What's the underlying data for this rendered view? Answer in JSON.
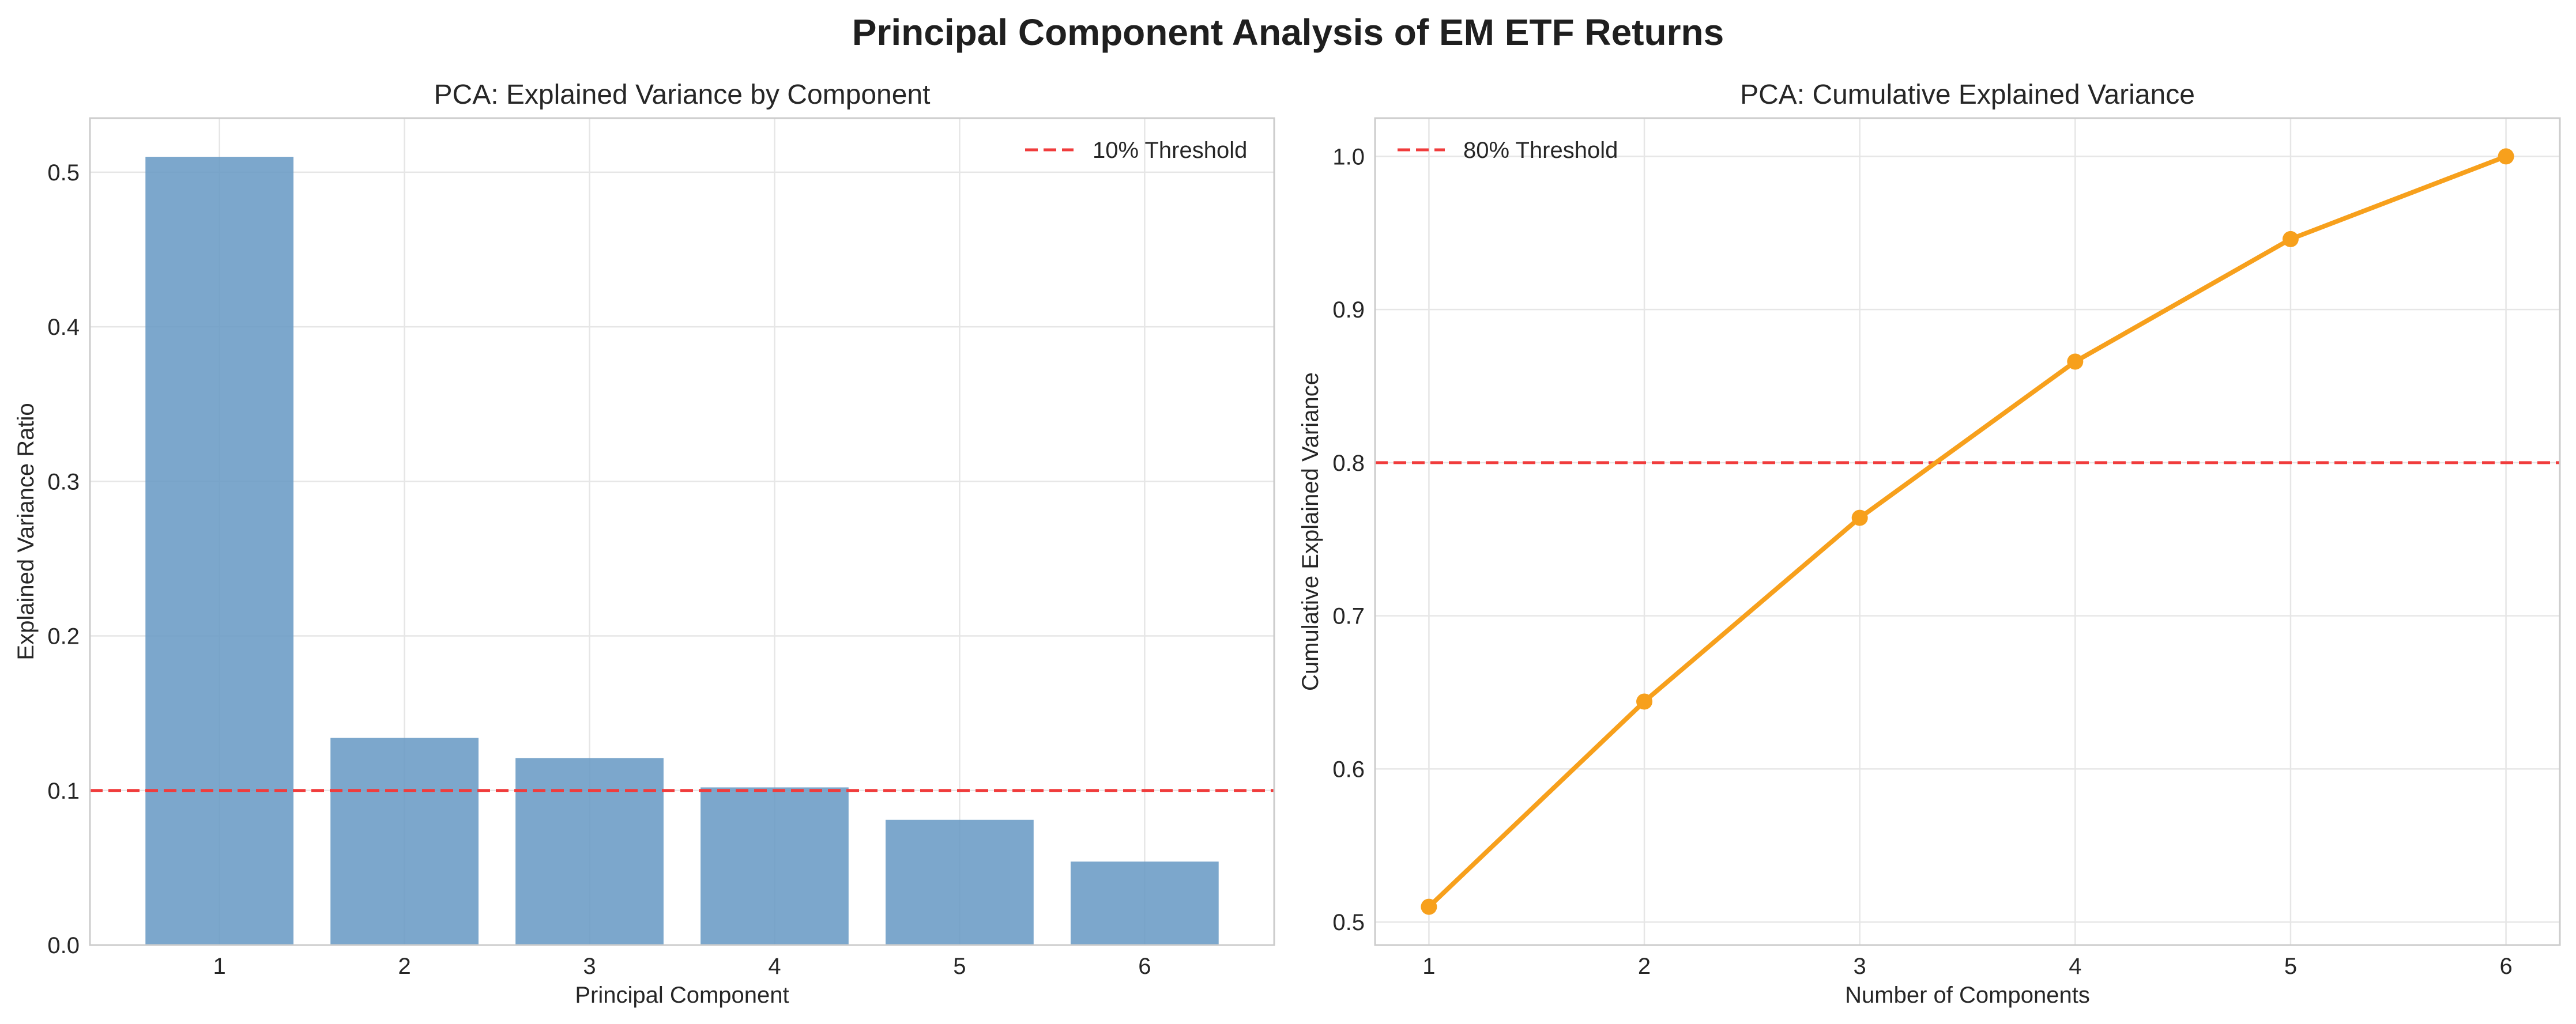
{
  "figure": {
    "suptitle": "Principal Component Analysis of EM ETF Returns"
  },
  "chart_data": [
    {
      "type": "bar",
      "title": "PCA: Explained Variance by Component",
      "xlabel": "Principal Component",
      "ylabel": "Explained Variance Ratio",
      "categories": [
        "1",
        "2",
        "3",
        "4",
        "5",
        "6"
      ],
      "values": [
        0.51,
        0.134,
        0.121,
        0.102,
        0.081,
        0.054
      ],
      "ylim": [
        0,
        0.535
      ],
      "yticks": [
        0.0,
        0.1,
        0.2,
        0.3,
        0.4,
        0.5
      ],
      "ytick_labels": [
        "0.0",
        "0.1",
        "0.2",
        "0.3",
        "0.4",
        "0.5"
      ],
      "grid": true,
      "bar_color": "#6a9bc5",
      "threshold": {
        "value": 0.1,
        "label": "10% Threshold",
        "color": "#f03c3c"
      },
      "legend_position": "top-right"
    },
    {
      "type": "line",
      "title": "PCA: Cumulative Explained Variance",
      "xlabel": "Number of Components",
      "ylabel": "Cumulative Explained Variance",
      "x": [
        1,
        2,
        3,
        4,
        5,
        6
      ],
      "y": [
        0.51,
        0.644,
        0.764,
        0.866,
        0.946,
        1.0
      ],
      "xlim": [
        0.75,
        6.25
      ],
      "ylim": [
        0.485,
        1.025
      ],
      "xtick_labels": [
        "1",
        "2",
        "3",
        "4",
        "5",
        "6"
      ],
      "yticks": [
        0.5,
        0.6,
        0.7,
        0.8,
        0.9,
        1.0
      ],
      "ytick_labels": [
        "0.5",
        "0.6",
        "0.7",
        "0.8",
        "0.9",
        "1.0"
      ],
      "grid": true,
      "line_color": "#f7a01c",
      "threshold": {
        "value": 0.8,
        "label": "80% Threshold",
        "color": "#f03c3c"
      },
      "legend_position": "top-left"
    }
  ]
}
